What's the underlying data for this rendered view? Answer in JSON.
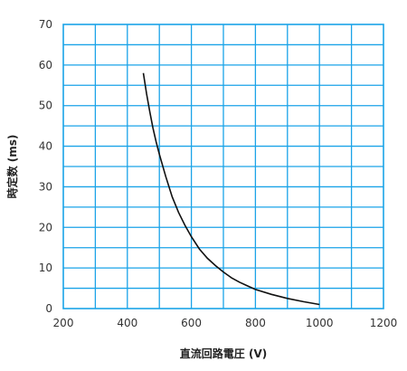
{
  "chart_data": {
    "type": "line",
    "title": "",
    "xlabel": "直流回路電圧 (V)",
    "ylabel": "時定数 (ms)",
    "xlim": [
      200,
      1200
    ],
    "ylim": [
      0,
      70
    ],
    "xticks": [
      200,
      400,
      600,
      800,
      1000,
      1200
    ],
    "yticks": [
      0,
      10,
      20,
      30,
      40,
      50,
      60,
      70
    ],
    "x_minor_step": 100,
    "y_minor_step": 5,
    "grid": true,
    "colors": {
      "grid": "#1aa3e8",
      "line": "#111111"
    },
    "series": [
      {
        "x": [
          450,
          460,
          470,
          480,
          490,
          500,
          520,
          540,
          560,
          580,
          600,
          625,
          650,
          675,
          700,
          725,
          750,
          775,
          800,
          850,
          900,
          950,
          1000
        ],
        "y": [
          58,
          53,
          48.5,
          44.5,
          41,
          38,
          32.5,
          27.5,
          23.7,
          20.5,
          17.7,
          14.7,
          12.4,
          10.6,
          9.0,
          7.6,
          6.5,
          5.6,
          4.7,
          3.5,
          2.5,
          1.7,
          1.0
        ]
      }
    ]
  }
}
